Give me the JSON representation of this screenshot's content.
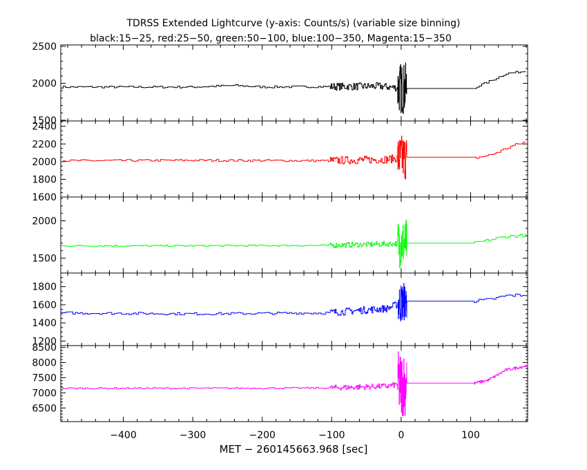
{
  "title": "TDRSS Extended Lightcurve (y-axis: Counts/s) (variable size binning)",
  "subtitle": "black:15−25, red:25−50, green:50−100, blue:100−350, Magenta:15−350",
  "xlabel": "MET − 260145663.968 [sec]",
  "chart_data": {
    "type": "line",
    "title": "TDRSS Extended Lightcurve (y-axis: Counts/s) (variable size binning)",
    "subtitle": "black:15−25, red:25−50, green:50−100, blue:100−350, Magenta:15−350",
    "xlabel": "MET − 260145663.968 [sec]",
    "ylabel": "Counts/s",
    "xlim": [
      -490,
      182
    ],
    "xticks": [
      -400,
      -300,
      -200,
      -100,
      0,
      100
    ],
    "xtick_labels": [
      "−400",
      "−300",
      "−200",
      "−100",
      "0",
      "100"
    ],
    "grid": false,
    "panels": [
      {
        "name": "15-25",
        "color": "#000000",
        "ylim": [
          1490,
          2520
        ],
        "yticks": [
          1500,
          2000,
          2500
        ],
        "anchors": [
          [
            -490,
            1950
          ],
          [
            -300,
            1950
          ],
          [
            -240,
            1970
          ],
          [
            -200,
            1950
          ],
          [
            -110,
            1955
          ],
          [
            -30,
            1960
          ],
          [
            5,
            1930
          ],
          [
            60,
            1930
          ],
          [
            61,
            1960
          ],
          [
            110,
            1960
          ],
          [
            130,
            2040
          ],
          [
            150,
            2130
          ],
          [
            182,
            2170
          ]
        ],
        "noise": [
          [
            -490,
            -102,
            14
          ],
          [
            -102,
            -5,
            50
          ],
          [
            -5,
            8,
            350
          ],
          [
            8,
            109,
            0
          ],
          [
            109,
            182,
            14
          ]
        ]
      },
      {
        "name": "25-50",
        "color": "#ff0000",
        "ylim": [
          1600,
          2460
        ],
        "yticks": [
          1600,
          1800,
          2000,
          2200,
          2400
        ],
        "anchors": [
          [
            -490,
            2010
          ],
          [
            -300,
            2015
          ],
          [
            -110,
            2010
          ],
          [
            -20,
            2025
          ],
          [
            5,
            2050
          ],
          [
            55,
            2050
          ],
          [
            56,
            2040
          ],
          [
            105,
            2040
          ],
          [
            130,
            2080
          ],
          [
            160,
            2180
          ],
          [
            182,
            2230
          ]
        ],
        "noise": [
          [
            -490,
            -102,
            12
          ],
          [
            -102,
            -5,
            45
          ],
          [
            -5,
            8,
            260
          ],
          [
            8,
            105,
            0
          ],
          [
            105,
            182,
            16
          ]
        ]
      },
      {
        "name": "50-100",
        "color": "#00ff00",
        "ylim": [
          1300,
          2320
        ],
        "yticks": [
          1500,
          2000
        ],
        "anchors": [
          [
            -490,
            1665
          ],
          [
            -300,
            1665
          ],
          [
            -110,
            1670
          ],
          [
            -20,
            1690
          ],
          [
            5,
            1700
          ],
          [
            105,
            1700
          ],
          [
            120,
            1730
          ],
          [
            150,
            1790
          ],
          [
            182,
            1810
          ]
        ],
        "noise": [
          [
            -490,
            -102,
            10
          ],
          [
            -102,
            -5,
            35
          ],
          [
            -5,
            8,
            330
          ],
          [
            8,
            105,
            0
          ],
          [
            105,
            182,
            20
          ]
        ]
      },
      {
        "name": "100-350",
        "color": "#0000ff",
        "ylim": [
          1150,
          1950
        ],
        "yticks": [
          1200,
          1400,
          1600,
          1800
        ],
        "anchors": [
          [
            -490,
            1510
          ],
          [
            -300,
            1500
          ],
          [
            -110,
            1510
          ],
          [
            -20,
            1560
          ],
          [
            5,
            1640
          ],
          [
            105,
            1640
          ],
          [
            130,
            1660
          ],
          [
            150,
            1700
          ],
          [
            182,
            1710
          ]
        ],
        "noise": [
          [
            -490,
            -102,
            14
          ],
          [
            -102,
            -5,
            40
          ],
          [
            -5,
            8,
            220
          ],
          [
            8,
            105,
            0
          ],
          [
            105,
            182,
            18
          ]
        ]
      },
      {
        "name": "15-350",
        "color": "#ff00ff",
        "ylim": [
          6050,
          8560
        ],
        "yticks": [
          6500,
          7000,
          7500,
          8000,
          8500
        ],
        "anchors": [
          [
            -490,
            7150
          ],
          [
            -300,
            7150
          ],
          [
            -110,
            7160
          ],
          [
            -20,
            7220
          ],
          [
            5,
            7320
          ],
          [
            105,
            7320
          ],
          [
            125,
            7420
          ],
          [
            150,
            7750
          ],
          [
            182,
            7900
          ]
        ],
        "noise": [
          [
            -490,
            -102,
            25
          ],
          [
            -102,
            -5,
            90
          ],
          [
            -5,
            8,
            1100
          ],
          [
            8,
            105,
            0
          ],
          [
            105,
            182,
            45
          ]
        ]
      }
    ]
  }
}
